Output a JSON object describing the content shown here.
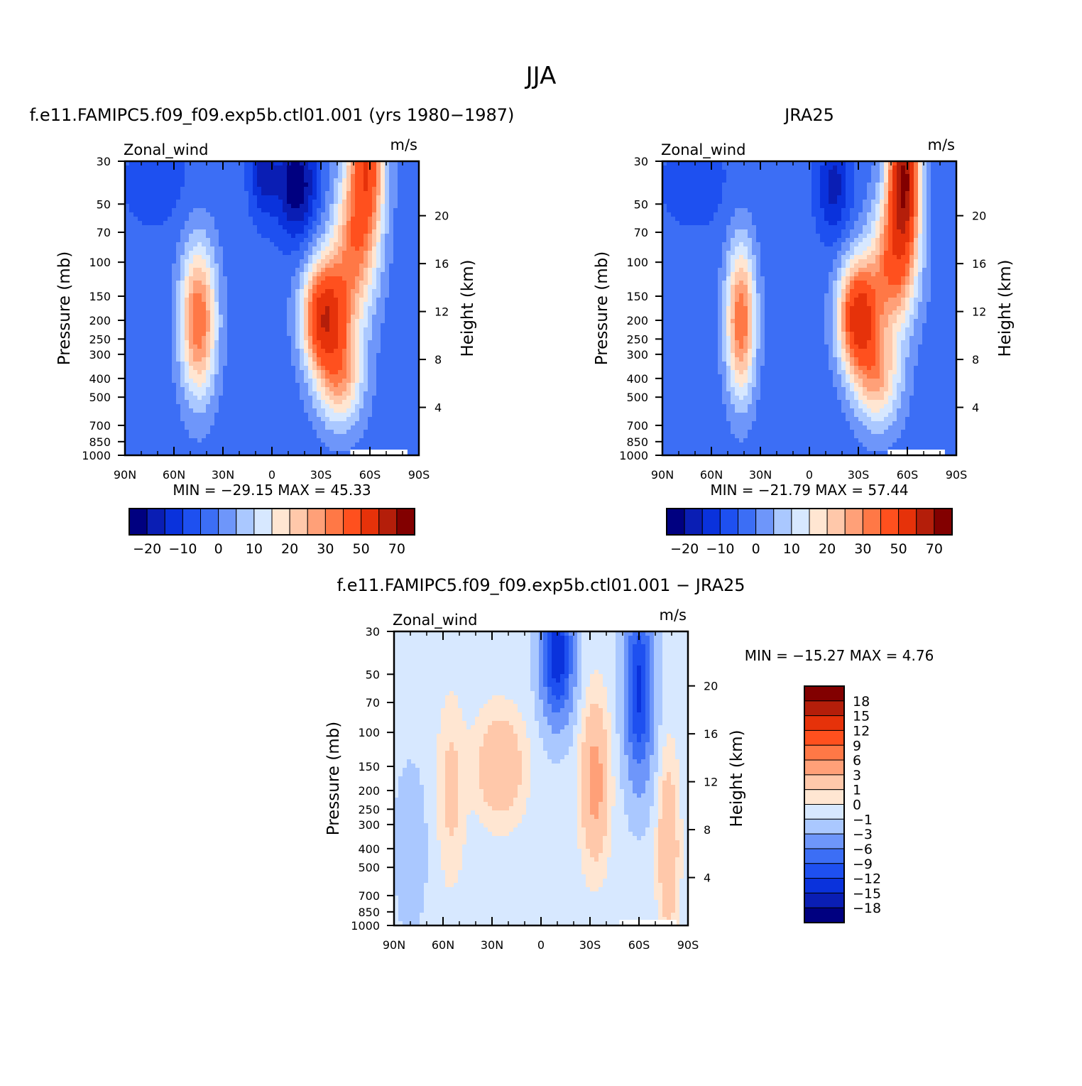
{
  "page_title": "JJA",
  "colors": {
    "blue_red_14": [
      "#000080",
      "#0a1eb4",
      "#0a32dc",
      "#1e50f0",
      "#3c6ef5",
      "#6e96fa",
      "#aac8ff",
      "#d7e8ff",
      "#ffe6d2",
      "#ffc8aa",
      "#ffa078",
      "#ff7846",
      "#ff501e",
      "#e6320a",
      "#b41e0a",
      "#820000"
    ],
    "abs_colors": [
      "#000080",
      "#0a1eb4",
      "#0a32dc",
      "#1e50f0",
      "#3c6ef5",
      "#6e96fa",
      "#aac8ff",
      "#d7e8ff",
      "#ffe6d2",
      "#ffc8aa",
      "#ffa078",
      "#ff7846",
      "#ff501e",
      "#e6320a",
      "#b41e0a",
      "#820000"
    ],
    "diff_colors": [
      "#000080",
      "#0a1eb4",
      "#0a32dc",
      "#1e50f0",
      "#3c6ef5",
      "#6e96fa",
      "#aac8ff",
      "#d7e8ff",
      "#ffe6d2",
      "#ffc8aa",
      "#ffa078",
      "#ff7846",
      "#ff501e",
      "#e6320a",
      "#b41e0a",
      "#820000"
    ]
  },
  "chart_data": [
    {
      "type": "heatmap",
      "title": "f.e11.FAMIPC5.f09_f09.exp5b.ctl01.001 (yrs 1980-1987)",
      "subtitle_left": "Zonal_wind",
      "subtitle_right": "m/s",
      "ylabel": "Pressure (mb)",
      "ylabel_right": "Height (km)",
      "x_ticks": [
        "90N",
        "60N",
        "30N",
        "0",
        "30S",
        "60S",
        "90S"
      ],
      "y_ticks": [
        "30",
        "50",
        "70",
        "100",
        "150",
        "200",
        "250",
        "300",
        "400",
        "500",
        "700",
        "850",
        "1000"
      ],
      "y_ticks_right": [
        "20",
        "16",
        "12",
        "8",
        "4"
      ],
      "stats": {
        "min_label": "MIN =",
        "min": "-29.15",
        "max_label": "MAX =",
        "max": "45.33"
      },
      "colorbar": {
        "orientation": "horizontal",
        "labels": [
          "-20",
          "-10",
          "0",
          "10",
          "20",
          "30",
          "50",
          "70"
        ]
      },
      "features": [
        {
          "lat": -15,
          "p": 40,
          "u": -30,
          "rx": 12,
          "ry": 0.6
        },
        {
          "lat": 5,
          "p": 35,
          "u": -22,
          "rx": 8,
          "ry": 0.5
        },
        {
          "lat": -32,
          "p": 190,
          "u": 45,
          "rx": 13,
          "ry": 0.65
        },
        {
          "lat": -58,
          "p": 30,
          "u": 35,
          "rx": 11,
          "ry": 0.9
        },
        {
          "lat": -50,
          "p": 90,
          "u": 22,
          "rx": 14,
          "ry": 0.9
        },
        {
          "lat": -42,
          "p": 400,
          "u": 18,
          "rx": 14,
          "ry": 0.6
        },
        {
          "lat": 45,
          "p": 200,
          "u": 30,
          "rx": 11,
          "ry": 0.9
        },
        {
          "lat": 70,
          "p": 40,
          "u": -12,
          "rx": 25,
          "ry": 0.6
        }
      ],
      "background_u": -8
    },
    {
      "type": "heatmap",
      "title": "JRA25",
      "subtitle_left": "Zonal_wind",
      "subtitle_right": "m/s",
      "ylabel": "Pressure (mb)",
      "ylabel_right": "Height (km)",
      "x_ticks": [
        "90N",
        "60N",
        "30N",
        "0",
        "30S",
        "60S",
        "90S"
      ],
      "y_ticks": [
        "30",
        "50",
        "70",
        "100",
        "150",
        "200",
        "250",
        "300",
        "400",
        "500",
        "700",
        "850",
        "1000"
      ],
      "y_ticks_right": [
        "20",
        "16",
        "12",
        "8",
        "4"
      ],
      "stats": {
        "min_label": "MIN =",
        "min": "-21.79",
        "max_label": "MAX =",
        "max": "57.44"
      },
      "colorbar": {
        "orientation": "horizontal",
        "labels": [
          "-20",
          "-10",
          "0",
          "10",
          "20",
          "30",
          "50",
          "70"
        ]
      },
      "features": [
        {
          "lat": -15,
          "p": 40,
          "u": -22,
          "rx": 10,
          "ry": 0.6
        },
        {
          "lat": -30,
          "p": 190,
          "u": 45,
          "rx": 12,
          "ry": 0.65
        },
        {
          "lat": -58,
          "p": 35,
          "u": 58,
          "rx": 9,
          "ry": 0.8
        },
        {
          "lat": -52,
          "p": 100,
          "u": 30,
          "rx": 14,
          "ry": 0.8
        },
        {
          "lat": -42,
          "p": 400,
          "u": 18,
          "rx": 14,
          "ry": 0.6
        },
        {
          "lat": 42,
          "p": 200,
          "u": 30,
          "rx": 9,
          "ry": 0.9
        },
        {
          "lat": 70,
          "p": 40,
          "u": -12,
          "rx": 25,
          "ry": 0.6
        }
      ],
      "background_u": -8
    },
    {
      "type": "heatmap",
      "title": "f.e11.FAMIPC5.f09_f09.exp5b.ctl01.001 - JRA25",
      "subtitle_left": "Zonal_wind",
      "subtitle_right": "m/s",
      "ylabel": "Pressure (mb)",
      "ylabel_right": "Height (km)",
      "x_ticks": [
        "90N",
        "60N",
        "30N",
        "0",
        "30S",
        "60S",
        "90S"
      ],
      "y_ticks": [
        "30",
        "50",
        "70",
        "100",
        "150",
        "200",
        "250",
        "300",
        "400",
        "500",
        "700",
        "850",
        "1000"
      ],
      "y_ticks_right": [
        "20",
        "16",
        "12",
        "8",
        "4"
      ],
      "stats": {
        "min_label": "MIN =",
        "min": "-15.27",
        "max_label": "MAX =",
        "max": "4.76"
      },
      "colorbar": {
        "orientation": "vertical",
        "labels": [
          "18",
          "15",
          "12",
          "9",
          "6",
          "3",
          "1",
          "0",
          "-1",
          "-3",
          "-6",
          "-9",
          "-12",
          "-15",
          "-18"
        ]
      },
      "features": [
        {
          "lat": -10,
          "p": 40,
          "u": -15,
          "rx": 9,
          "ry": 0.7
        },
        {
          "lat": -60,
          "p": 60,
          "u": -13,
          "rx": 8,
          "ry": 1.0
        },
        {
          "lat": -33,
          "p": 180,
          "u": 4,
          "rx": 8,
          "ry": 0.9
        },
        {
          "lat": 25,
          "p": 150,
          "u": 3,
          "rx": 14,
          "ry": 0.6
        },
        {
          "lat": -78,
          "p": 400,
          "u": 3,
          "rx": 6,
          "ry": 1.0
        },
        {
          "lat": 55,
          "p": 200,
          "u": 1.5,
          "rx": 8,
          "ry": 1.0
        },
        {
          "lat": 80,
          "p": 400,
          "u": -2,
          "rx": 10,
          "ry": 1.0
        }
      ],
      "background_u": -0.5
    }
  ]
}
